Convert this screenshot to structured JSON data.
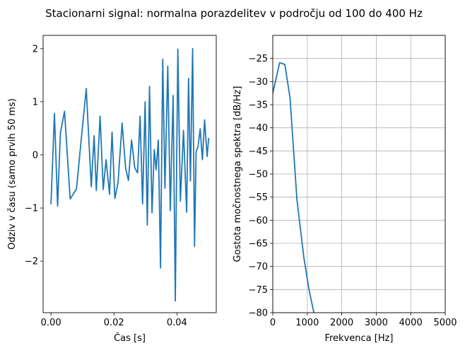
{
  "figure": {
    "title": "Stacionarni signal: normalna porazdelitev v področju od 100 do 400 Hz"
  },
  "chart_data": [
    {
      "type": "line",
      "xlabel": "Čas [s]",
      "ylabel": "Odziv v času (samo prvih 50 ms)",
      "xlim": [
        -0.0025,
        0.0525
      ],
      "ylim": [
        -2.97,
        2.25
      ],
      "xticks": [
        0.0,
        0.02,
        0.04
      ],
      "xtick_labels": [
        "0.00",
        "0.02",
        "0.04"
      ],
      "yticks": [
        -2,
        -1,
        0,
        1,
        2
      ],
      "ytick_labels": [
        "−2",
        "−1",
        "0",
        "1",
        "2"
      ],
      "grid": false,
      "color": "#1f77b4",
      "series": [
        {
          "x": [
            0.0,
            0.0011,
            0.0021,
            0.003,
            0.0043,
            0.0061,
            0.0081,
            0.0094,
            0.0112,
            0.0128,
            0.0137,
            0.0144,
            0.0156,
            0.0166,
            0.0175,
            0.0186,
            0.0194,
            0.0203,
            0.0213,
            0.0226,
            0.0237,
            0.0246,
            0.0256,
            0.0266,
            0.0275,
            0.0283,
            0.0291,
            0.0299,
            0.0306,
            0.0313,
            0.0321,
            0.0328,
            0.0334,
            0.0341,
            0.0348,
            0.0355,
            0.0362,
            0.0371,
            0.0379,
            0.0388,
            0.0395,
            0.0403,
            0.0411,
            0.0421,
            0.0431,
            0.0437,
            0.0443,
            0.045,
            0.0456,
            0.0461,
            0.0467,
            0.0474,
            0.0481,
            0.0488,
            0.0496,
            0.0501
          ],
          "y": [
            -0.93,
            0.78,
            -0.96,
            0.42,
            0.82,
            -0.83,
            -0.64,
            0.16,
            1.25,
            -0.6,
            0.36,
            -0.67,
            0.73,
            -0.65,
            -0.09,
            -0.74,
            0.43,
            -0.82,
            -0.52,
            0.6,
            -0.25,
            -0.48,
            0.28,
            -0.24,
            -0.34,
            0.73,
            -0.92,
            1.0,
            -1.32,
            1.29,
            -1.09,
            0.1,
            -0.28,
            0.28,
            -2.13,
            1.8,
            -0.63,
            1.67,
            -1.05,
            1.12,
            -2.75,
            1.99,
            -0.87,
            0.46,
            -1.08,
            1.44,
            -0.49,
            2.0,
            -1.72,
            0.06,
            0.15,
            0.49,
            -0.09,
            0.66,
            -0.03,
            0.32
          ]
        }
      ]
    },
    {
      "type": "line",
      "xlabel": "Frekvenca [Hz]",
      "ylabel": "Gostota močnostnega spektra [dB/Hz]",
      "xlim": [
        0,
        5000
      ],
      "ylim": [
        -80,
        -20
      ],
      "xticks": [
        0,
        1000,
        2000,
        3000,
        4000,
        5000
      ],
      "xtick_labels": [
        "0",
        "1000",
        "2000",
        "3000",
        "4000",
        "5000"
      ],
      "yticks": [
        -80,
        -75,
        -70,
        -65,
        -60,
        -55,
        -50,
        -45,
        -40,
        -35,
        -30,
        -25
      ],
      "ytick_labels": [
        "−80",
        "−75",
        "−70",
        "−65",
        "−60",
        "−55",
        "−50",
        "−45",
        "−40",
        "−35",
        "−30",
        "−25"
      ],
      "grid": true,
      "color": "#1f77b4",
      "series": [
        {
          "x": [
            0,
            200,
            350,
            500,
            700,
            900,
            1050,
            1200
          ],
          "y": [
            -32.5,
            -25.9,
            -26.3,
            -33.5,
            -55.5,
            -68.0,
            -75.0,
            -80.3
          ]
        }
      ]
    }
  ]
}
